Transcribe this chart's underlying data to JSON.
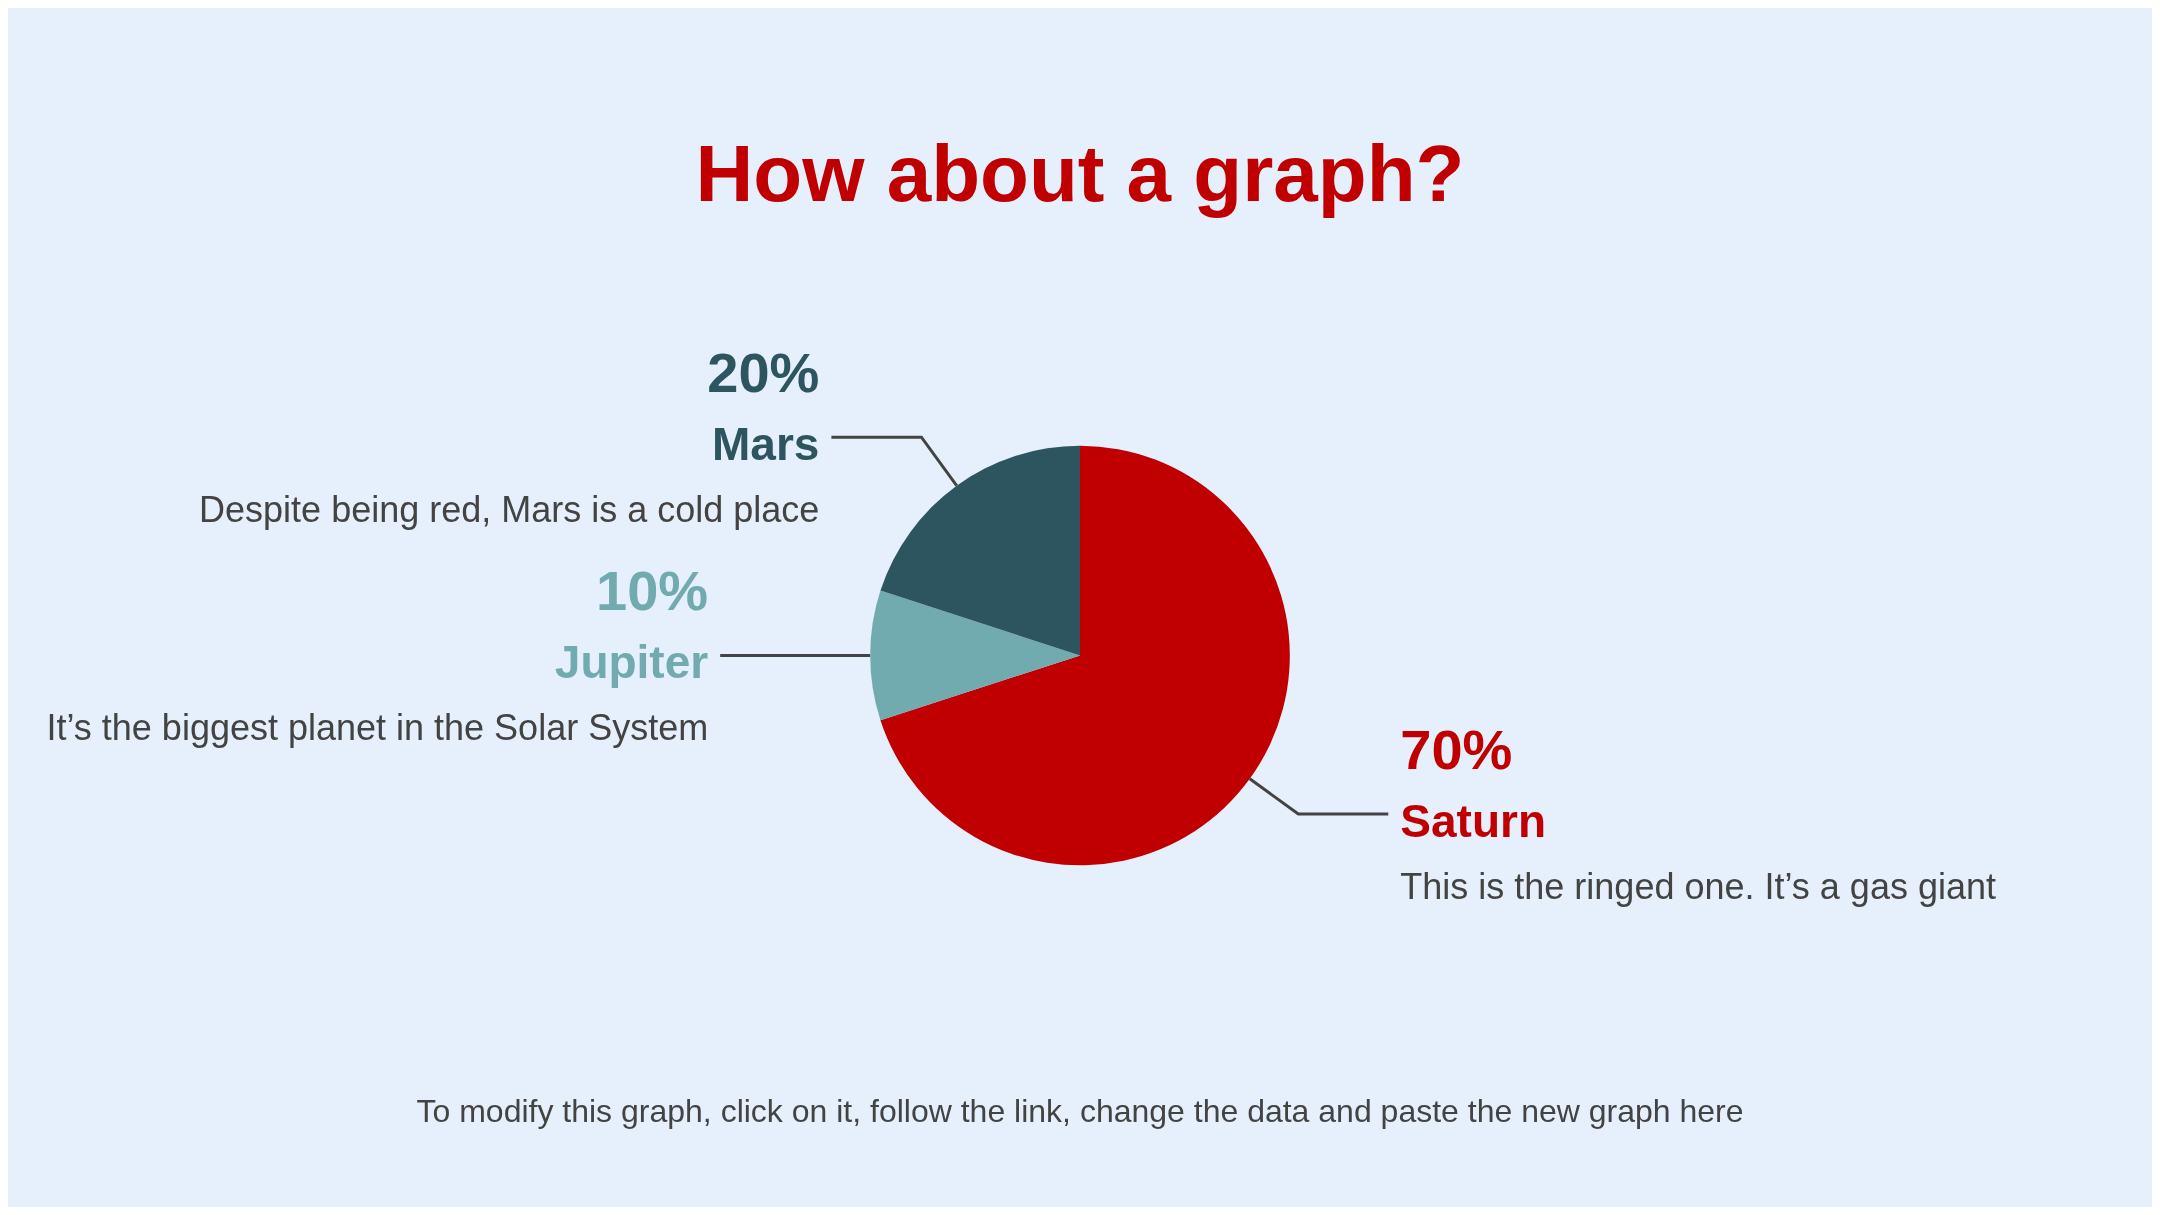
{
  "chart_data": {
    "type": "pie",
    "title": "How about a graph?",
    "categories": [
      "Saturn",
      "Jupiter",
      "Mars"
    ],
    "values": [
      70,
      10,
      20
    ],
    "colors": [
      "#c00000",
      "#71abb0",
      "#2d5560"
    ],
    "value_labels": [
      "70%",
      "10%",
      "20%"
    ],
    "annotations": [
      "This is the ringed one. It’s a gas giant",
      "It’s the biggest planet in the Solar System",
      "Despite being red, Mars is a cold place",
      "To modify this graph, click on it, follow the link, change the data and paste the new graph here"
    ]
  }
}
